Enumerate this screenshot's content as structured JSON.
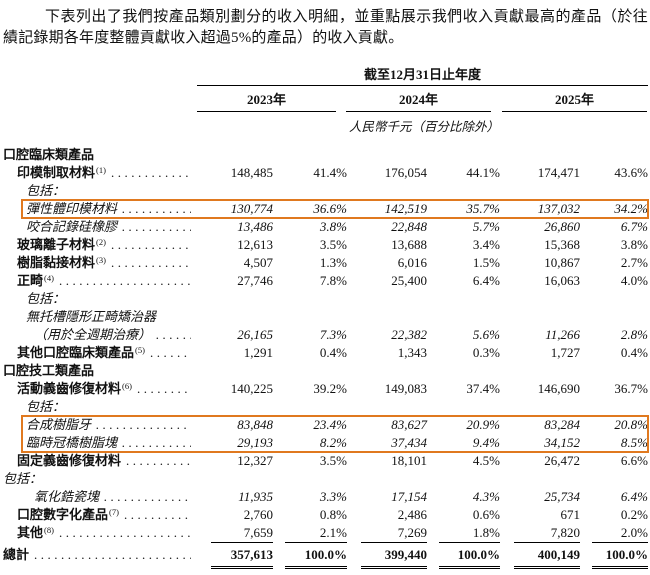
{
  "accent_color": "#e0791f",
  "intro": "下表列出了我們按產品類別劃分的收入明細，並重點展示我們收入貢獻最高的產品（於往績記錄期各年度整體貢獻收入超過5%的產品）的收入貢獻。",
  "table": {
    "header": {
      "period": "截至12月31日止年度",
      "years": [
        "2023年",
        "2024年",
        "2025年"
      ],
      "unit_note": "人民幣千元（百分比除外）"
    },
    "rows": [
      {
        "label": "口腔臨床類產品",
        "indent": 0,
        "bold": true
      },
      {
        "label": "印模制取材料",
        "sup": "(1)",
        "indent": 1,
        "bold": true,
        "leader": true,
        "values": [
          "148,485",
          "41.4%",
          "176,054",
          "44.1%",
          "174,471",
          "43.6%"
        ]
      },
      {
        "label": "包括：",
        "indent": 2,
        "italic": true
      },
      {
        "label": "彈性體印模材料",
        "indent": 2,
        "italic": true,
        "leader": true,
        "hl": true,
        "values": [
          "130,774",
          "36.6%",
          "142,519",
          "35.7%",
          "137,032",
          "34.2%"
        ]
      },
      {
        "label": "咬合記錄硅橡膠",
        "indent": 2,
        "italic": true,
        "leader": true,
        "values": [
          "13,486",
          "3.8%",
          "22,848",
          "5.7%",
          "26,860",
          "6.7%"
        ]
      },
      {
        "label": "玻璃離子材料",
        "sup": "(2)",
        "indent": 1,
        "bold": true,
        "leader": true,
        "values": [
          "12,613",
          "3.5%",
          "13,688",
          "3.4%",
          "15,368",
          "3.8%"
        ]
      },
      {
        "label": "樹脂黏接材料",
        "sup": "(3)",
        "indent": 1,
        "bold": true,
        "leader": true,
        "values": [
          "4,507",
          "1.3%",
          "6,016",
          "1.5%",
          "10,867",
          "2.7%"
        ]
      },
      {
        "label": "正畸",
        "sup": "(4)",
        "indent": 1,
        "bold": true,
        "leader": true,
        "values": [
          "27,746",
          "7.8%",
          "25,400",
          "6.4%",
          "16,063",
          "4.0%"
        ]
      },
      {
        "label": "包括：",
        "indent": 2,
        "italic": true
      },
      {
        "label": "無托槽隱形正畸矯治器",
        "indent": 2,
        "italic": true
      },
      {
        "label": "（用於全週期治療）",
        "indent": 3,
        "italic": true,
        "leader": true,
        "values": [
          "26,165",
          "7.3%",
          "22,382",
          "5.6%",
          "11,266",
          "2.8%"
        ]
      },
      {
        "label": "其他口腔臨床類產品",
        "sup": "(5)",
        "indent": 1,
        "bold": true,
        "leader": true,
        "values": [
          "1,291",
          "0.4%",
          "1,343",
          "0.3%",
          "1,727",
          "0.4%"
        ]
      },
      {
        "label": "口腔技工類產品",
        "indent": 0,
        "bold": true
      },
      {
        "label": "活動義齒修復材料",
        "sup": "(6)",
        "indent": 1,
        "bold": true,
        "leader": true,
        "values": [
          "140,225",
          "39.2%",
          "149,083",
          "37.4%",
          "146,690",
          "36.7%"
        ]
      },
      {
        "label": "包括：",
        "indent": 2,
        "italic": true
      },
      {
        "label": "合成樹脂牙",
        "indent": 2,
        "italic": true,
        "leader": true,
        "hl": true,
        "values": [
          "83,848",
          "23.4%",
          "83,627",
          "20.9%",
          "83,284",
          "20.8%"
        ]
      },
      {
        "label": "臨時冠橋樹脂塊",
        "indent": 2,
        "italic": true,
        "leader": true,
        "hl": true,
        "values": [
          "29,193",
          "8.2%",
          "37,434",
          "9.4%",
          "34,152",
          "8.5%"
        ]
      },
      {
        "label": "固定義齒修復材料",
        "indent": 1,
        "bold": true,
        "leader": true,
        "values": [
          "12,327",
          "3.5%",
          "18,101",
          "4.5%",
          "26,472",
          "6.6%"
        ]
      },
      {
        "label": "包括：",
        "indent": 0,
        "italic": true
      },
      {
        "label": "氧化鋯瓷塊",
        "indent": 3,
        "italic": true,
        "leader": true,
        "values": [
          "11,935",
          "3.3%",
          "17,154",
          "4.3%",
          "25,734",
          "6.4%"
        ]
      },
      {
        "label": "口腔數字化產品",
        "sup": "(7)",
        "indent": 1,
        "bold": true,
        "leader": true,
        "values": [
          "2,760",
          "0.8%",
          "2,486",
          "0.6%",
          "671",
          "0.2%"
        ]
      },
      {
        "label": "其他",
        "sup": "(8)",
        "indent": 1,
        "bold": true,
        "leader": true,
        "values": [
          "7,659",
          "2.1%",
          "7,269",
          "1.8%",
          "7,820",
          "2.0%"
        ]
      },
      {
        "label": "總計",
        "indent": 0,
        "bold": true,
        "leader": true,
        "total": true,
        "values": [
          "357,613",
          "100.0%",
          "399,440",
          "100.0%",
          "400,149",
          "100.0%"
        ]
      }
    ]
  }
}
